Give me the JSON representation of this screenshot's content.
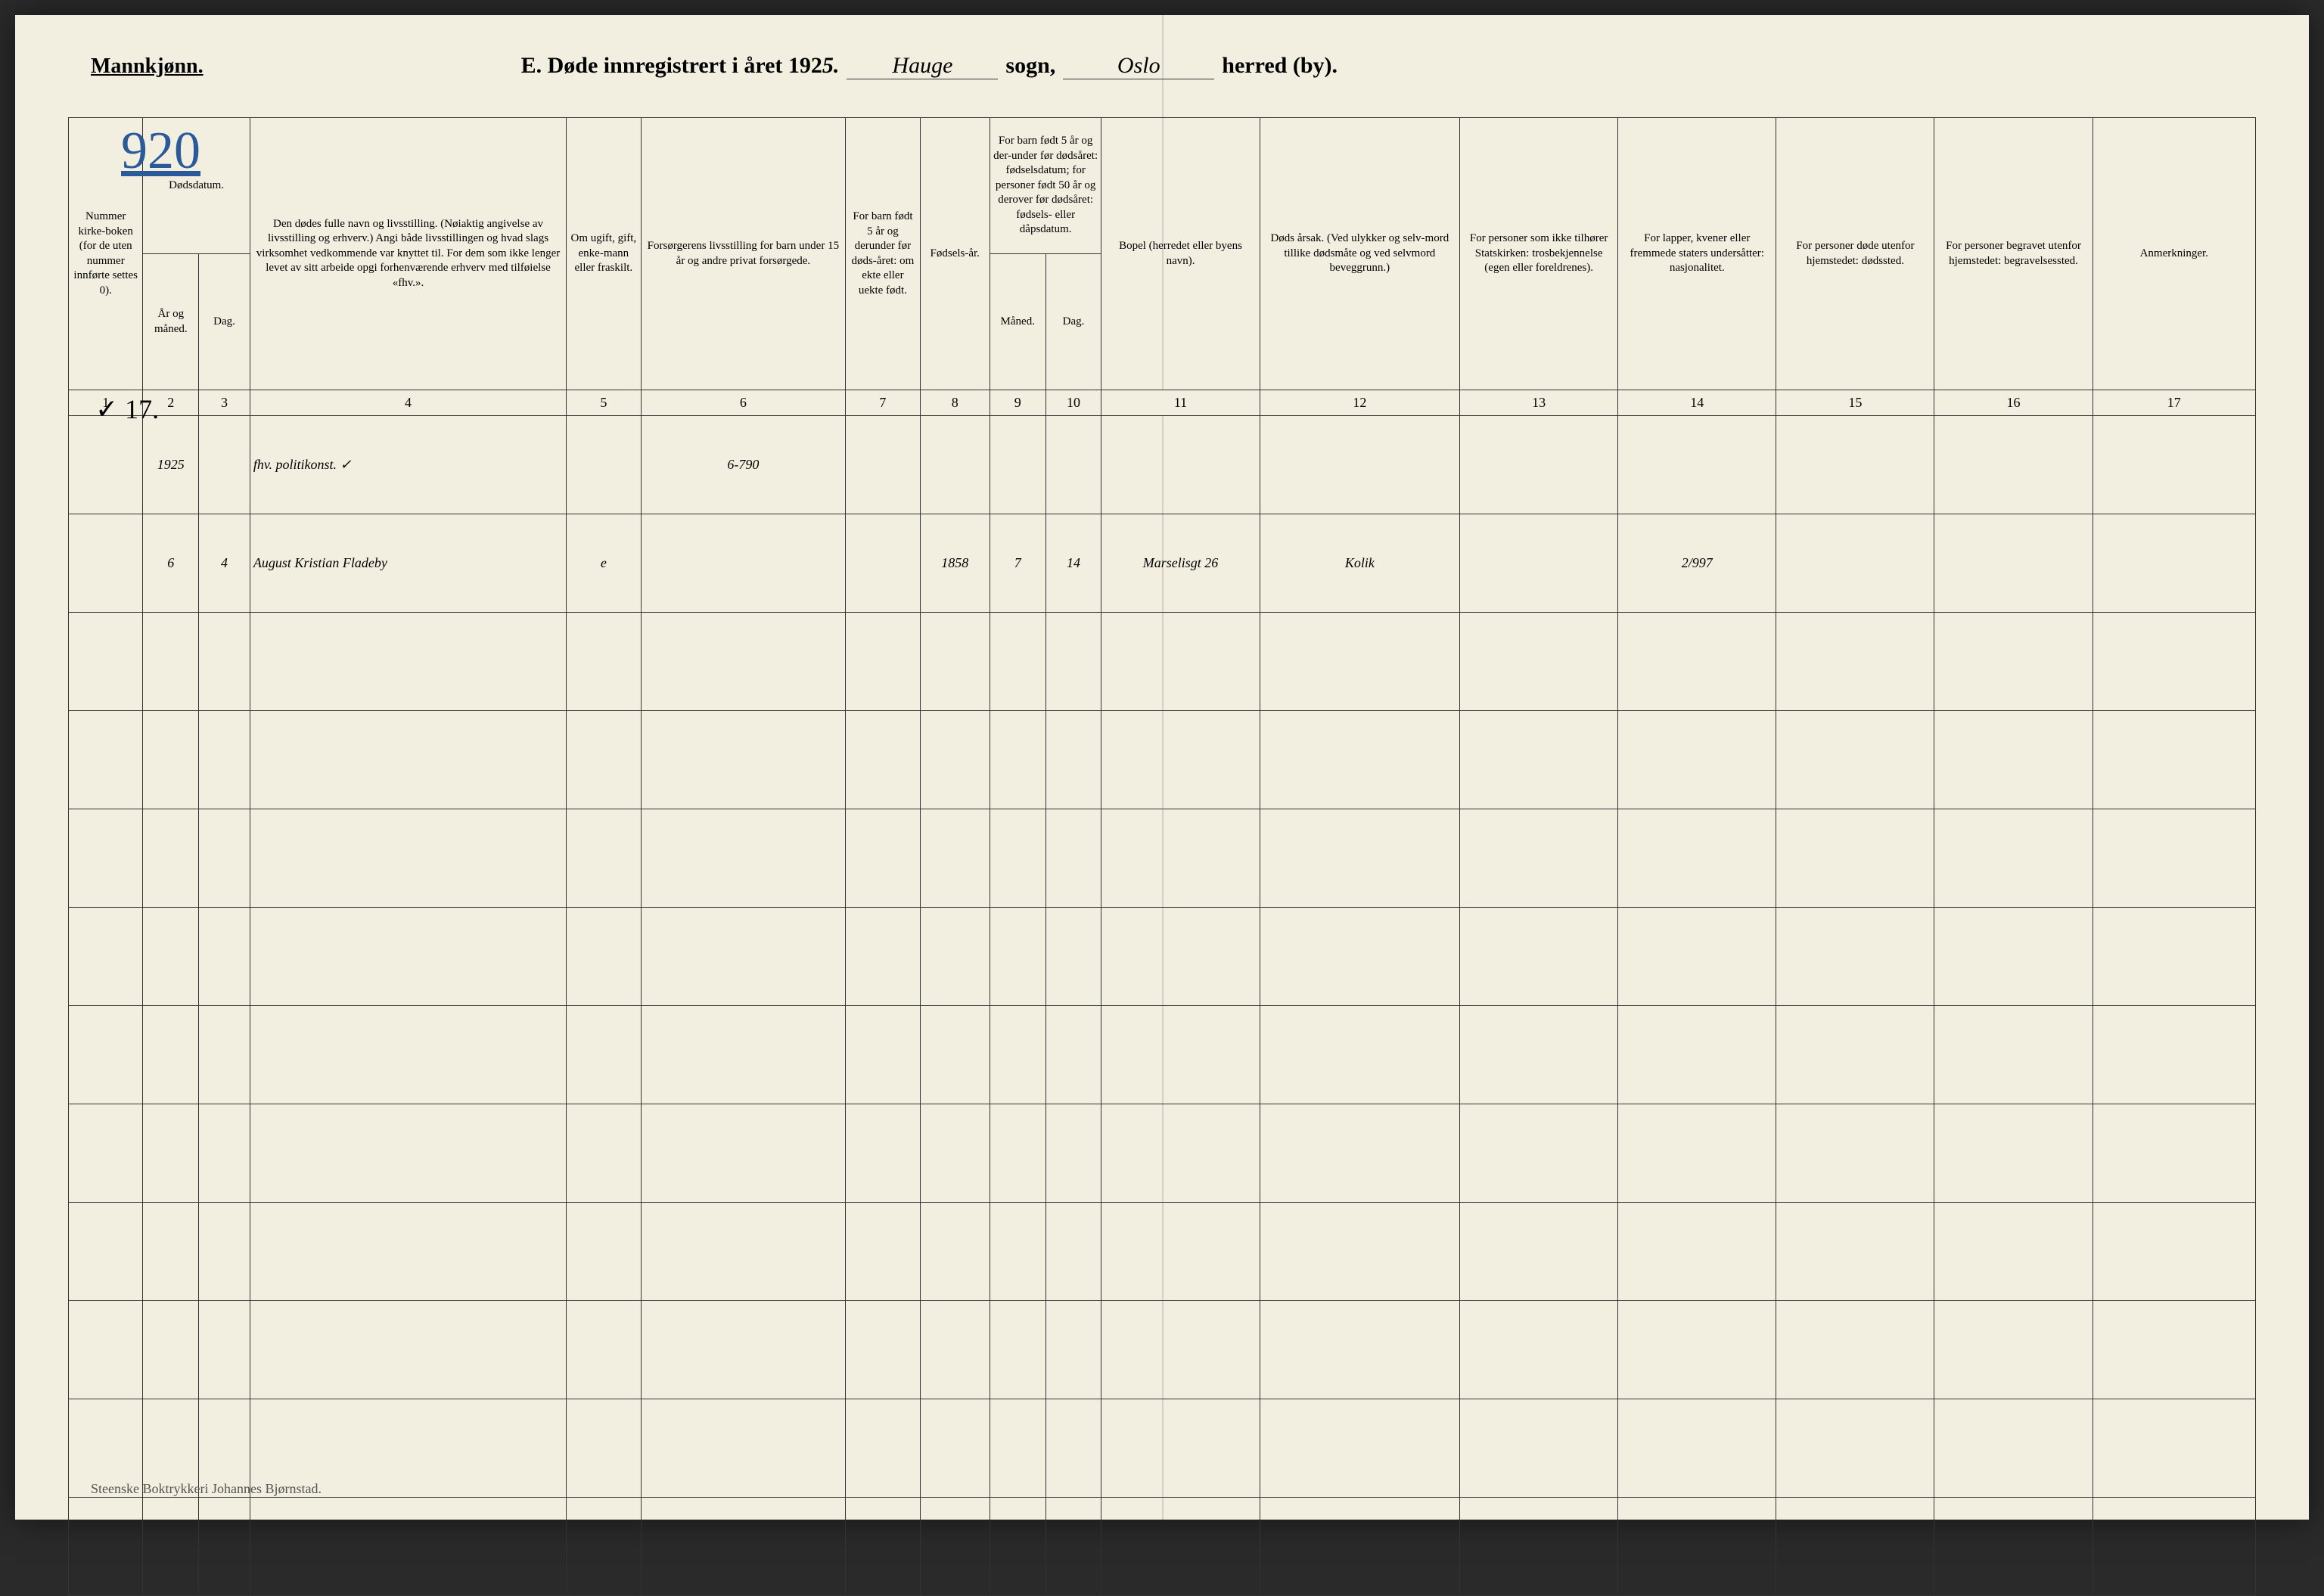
{
  "header": {
    "gender_label": "Mannkjønn.",
    "title_prefix": "E.  Døde innregistrert i året 192",
    "year_suffix_handwritten": "5.",
    "sogn_handwritten": "Hauge",
    "sogn_label": "sogn,",
    "herred_handwritten": "Oslo",
    "herred_label": "herred (by)."
  },
  "page_number_handwritten": "920",
  "margin_mark": "✓ 17.",
  "columns": {
    "c1": "Nummer kirke-boken (for de uten nummer innførte settes 0).",
    "c2_group": "Dødsdatum.",
    "c2": "År og måned.",
    "c3": "Dag.",
    "c4": "Den dødes fulle navn og livsstilling. (Nøiaktig angivelse av livsstilling og erhverv.) Angi både livsstillingen og hvad slags virksomhet vedkommende var knyttet til. For dem som ikke lenger levet av sitt arbeide opgi forhenværende erhverv med tilføielse «fhv.».",
    "c5": "Om ugift, gift, enke-mann eller fraskilt.",
    "c6": "Forsørgerens livsstilling for barn under 15 år og andre privat forsørgede.",
    "c7": "For barn født 5 år og derunder før døds-året: om ekte eller uekte født.",
    "c8": "Fødsels-år.",
    "c9_10_group": "For barn født 5 år og der-under før dødsåret: fødselsdatum; for personer født 50 år og derover før dødsåret: fødsels- eller dåpsdatum.",
    "c9": "Måned.",
    "c10": "Dag.",
    "c11": "Bopel (herredet eller byens navn).",
    "c12": "Døds årsak. (Ved ulykker og selv-mord tillike dødsmåte og ved selvmord beveggrunn.)",
    "c13": "For personer som ikke tilhører Statskirken: trosbekjennelse (egen eller foreldrenes).",
    "c14": "For lapper, kvener eller fremmede staters undersåtter: nasjonalitet.",
    "c15": "For personer døde utenfor hjemstedet: dødssted.",
    "c16": "For personer begravet utenfor hjemstedet: begravelsessted.",
    "c17": "Anmerkninger."
  },
  "colnums": [
    "1",
    "2",
    "3",
    "4",
    "5",
    "6",
    "7",
    "8",
    "9",
    "10",
    "11",
    "12",
    "13",
    "14",
    "15",
    "16",
    "17"
  ],
  "rows": [
    {
      "c1": "",
      "c2": "1925",
      "c3": "",
      "c4": "fhv. politikonst.",
      "c4_check": "✓",
      "c5": "",
      "c6": "6-790",
      "c7": "",
      "c8": "",
      "c9": "",
      "c10": "",
      "c11": "",
      "c12": "",
      "c13": "",
      "c14": "",
      "c15": "",
      "c16": "",
      "c17": ""
    },
    {
      "c1": "",
      "c2": "6",
      "c3": "4",
      "c4": "August Kristian Fladeby",
      "c4_check": "",
      "c5": "e",
      "c6": "",
      "c7": "",
      "c8": "1858",
      "c9": "7",
      "c10": "14",
      "c11": "Marselisgt 26",
      "c12": "Kolik",
      "c13": "",
      "c14": "2/997",
      "c15": "",
      "c16": "",
      "c17": ""
    }
  ],
  "empty_row_count": 10,
  "footer": "Steenske Boktrykkeri Johannes Bjørnstad.",
  "colors": {
    "paper": "#f2efe0",
    "ink": "#333333",
    "blue_ink": "#2a5a9a",
    "page_bg": "#2a2a2a"
  }
}
